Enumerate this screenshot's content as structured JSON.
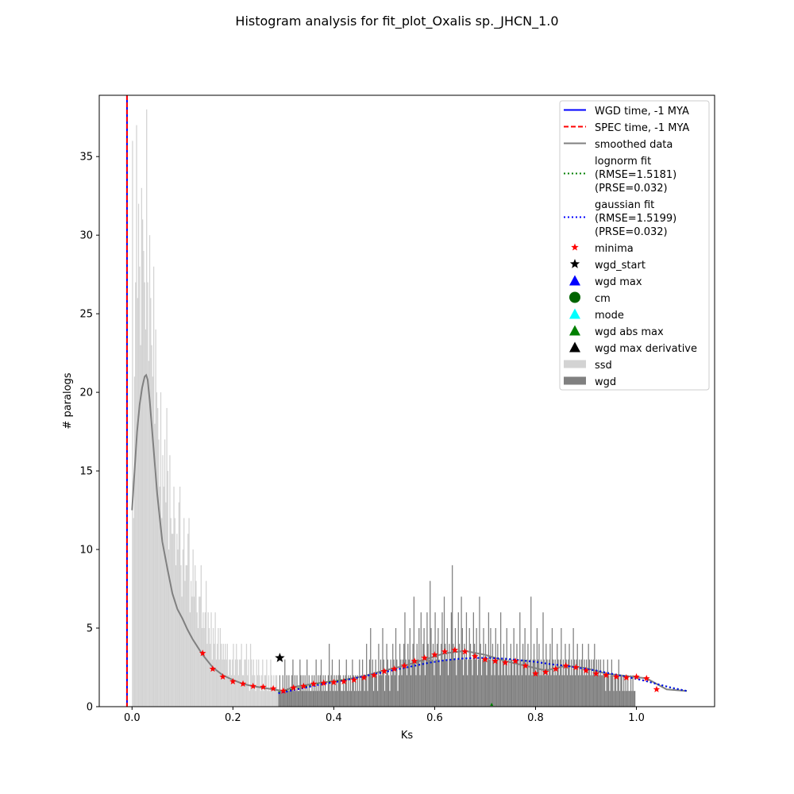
{
  "chart_data": {
    "type": "histogram",
    "title": "Histogram analysis for fit_plot_Oxalis sp._JHCN_1.0",
    "xlabel": "Ks",
    "ylabel": "# paralogs",
    "xlim": [
      -0.065,
      1.155
    ],
    "ylim": [
      0,
      38.9
    ],
    "xticks": [
      0.0,
      0.2,
      0.4,
      0.6,
      0.8,
      1.0
    ],
    "xtick_labels": [
      "0.0",
      "0.2",
      "0.4",
      "0.6",
      "0.8",
      "1.0"
    ],
    "yticks": [
      0,
      5,
      10,
      15,
      20,
      25,
      30,
      35
    ],
    "ytick_labels": [
      "0",
      "5",
      "10",
      "15",
      "20",
      "25",
      "30",
      "35"
    ],
    "grid": false,
    "legend_position": "top-right",
    "vertical_lines": [
      {
        "name": "WGD time, -1 MYA",
        "x": -0.01,
        "color": "#0000ff",
        "style": "solid"
      },
      {
        "name": "SPEC time, -1 MYA",
        "x": -0.01,
        "color": "#ff0000",
        "style": "dashed"
      }
    ],
    "ssd_bins": {
      "name": "ssd",
      "color": "#d3d3d3",
      "x_start": 0.0,
      "bin_width": 0.002,
      "counts": [
        36,
        12,
        21,
        27,
        37,
        26,
        32,
        28,
        23,
        33,
        31,
        29,
        27,
        24,
        38,
        27,
        22,
        30,
        26,
        23,
        21,
        28,
        18,
        24,
        20,
        19,
        17,
        14,
        20,
        12,
        16,
        14,
        17,
        13,
        19,
        15,
        10,
        16,
        12,
        11,
        11,
        14,
        12,
        9,
        11,
        10,
        13,
        14,
        9,
        7,
        10,
        12,
        8,
        9,
        9,
        11,
        12,
        6,
        8,
        7,
        10,
        7,
        9,
        8,
        6,
        5,
        7,
        7,
        9,
        5,
        6,
        5,
        6,
        8,
        4,
        6,
        5,
        4,
        6,
        3,
        5,
        4,
        6,
        3,
        4,
        5,
        3,
        5,
        4,
        3,
        4,
        3,
        4,
        3,
        4,
        2,
        3,
        3,
        2,
        3,
        4,
        2,
        3,
        4,
        3,
        2,
        3,
        3,
        4,
        2,
        2,
        3,
        3,
        4,
        2,
        3,
        1,
        4,
        3,
        2,
        3,
        2,
        1,
        3,
        2,
        3,
        2,
        1,
        2,
        3,
        1,
        2,
        2,
        3,
        1,
        2,
        1,
        3,
        2,
        1,
        2,
        1,
        2,
        2,
        1,
        1
      ]
    },
    "wgd_bins": {
      "name": "wgd",
      "color": "#808080",
      "x_start": 0.29,
      "bin_width": 0.002,
      "counts": [
        1,
        2,
        1,
        1,
        2,
        1,
        3,
        1,
        2,
        1,
        2,
        1,
        1,
        2,
        3,
        1,
        2,
        1,
        2,
        1,
        1,
        3,
        2,
        1,
        2,
        1,
        2,
        1,
        3,
        1,
        2,
        1,
        1,
        2,
        1,
        2,
        1,
        3,
        1,
        2,
        1,
        2,
        3,
        1,
        2,
        1,
        2,
        1,
        1,
        2,
        4,
        1,
        2,
        3,
        1,
        2,
        1,
        2,
        1,
        2,
        3,
        2,
        1,
        1,
        2,
        1,
        2,
        3,
        1,
        2,
        1,
        2,
        1,
        3,
        2,
        1,
        2,
        1,
        2,
        1,
        3,
        1,
        2,
        3,
        2,
        1,
        2,
        4,
        1,
        2,
        3,
        5,
        2,
        3,
        1,
        2,
        3,
        2,
        1,
        4,
        2,
        3,
        2,
        5,
        3,
        1,
        2,
        4,
        3,
        2,
        1,
        3,
        2,
        4,
        3,
        2,
        5,
        3,
        1,
        2,
        4,
        3,
        2,
        3,
        4,
        6,
        3,
        2,
        4,
        3,
        5,
        2,
        3,
        4,
        7,
        3,
        2,
        4,
        3,
        5,
        2,
        6,
        3,
        4,
        5,
        2,
        3,
        6,
        4,
        3,
        8,
        5,
        3,
        4,
        2,
        6,
        3,
        4,
        5,
        3,
        2,
        4,
        6,
        3,
        7,
        4,
        3,
        5,
        2,
        4,
        3,
        6,
        9,
        4,
        3,
        5,
        2,
        3,
        6,
        4,
        3,
        7,
        5,
        2,
        4,
        3,
        6,
        2,
        3,
        5,
        4,
        3,
        2,
        6,
        4,
        3,
        5,
        2,
        3,
        7,
        4,
        2,
        3,
        5,
        3,
        4,
        2,
        3,
        6,
        3,
        5,
        2,
        4,
        3,
        2,
        5,
        3,
        4,
        2,
        3,
        6,
        2,
        3,
        4,
        2,
        3,
        5,
        2,
        3,
        2,
        4,
        3,
        2,
        5,
        3,
        2,
        4,
        3,
        2,
        6,
        3,
        2,
        4,
        3,
        5,
        2,
        3,
        4,
        2,
        3,
        7,
        2,
        3,
        4,
        3,
        2,
        5,
        3,
        4,
        2,
        3,
        2,
        6,
        3,
        2,
        4,
        3,
        2,
        3,
        4,
        2,
        5,
        3,
        2,
        3,
        2,
        4,
        3,
        2,
        3,
        5,
        2,
        3,
        2,
        4,
        3,
        2,
        3,
        4,
        2,
        3,
        2,
        5,
        3,
        2,
        3,
        4,
        2,
        3,
        2,
        3,
        4,
        2,
        3,
        2,
        3,
        2,
        4,
        3,
        2,
        3,
        2,
        3,
        4,
        2,
        3,
        2,
        3,
        2,
        3,
        2,
        2,
        3,
        2,
        1,
        2,
        3,
        2,
        1,
        2,
        3,
        2,
        1,
        2,
        2,
        1,
        2,
        3,
        1,
        2,
        2,
        1,
        2,
        1,
        2,
        1,
        2,
        1,
        1,
        2,
        1,
        2,
        1,
        1
      ]
    },
    "smoothed_data": {
      "name": "smoothed data",
      "color": "#808080",
      "x": [
        0.0,
        0.005,
        0.01,
        0.015,
        0.02,
        0.025,
        0.028,
        0.031,
        0.035,
        0.04,
        0.045,
        0.05,
        0.055,
        0.06,
        0.07,
        0.08,
        0.09,
        0.1,
        0.11,
        0.12,
        0.13,
        0.14,
        0.15,
        0.16,
        0.18,
        0.2,
        0.22,
        0.24,
        0.26,
        0.28,
        0.3,
        0.32,
        0.35,
        0.38,
        0.42,
        0.46,
        0.5,
        0.54,
        0.58,
        0.62,
        0.66,
        0.7,
        0.74,
        0.78,
        0.82,
        0.86,
        0.9,
        0.94,
        0.98,
        1.02,
        1.06,
        1.1
      ],
      "y": [
        12.5,
        15.0,
        17.5,
        19.2,
        20.3,
        21.0,
        21.1,
        20.8,
        19.5,
        17.5,
        15.5,
        13.5,
        12.0,
        10.5,
        8.8,
        7.2,
        6.2,
        5.6,
        4.9,
        4.3,
        3.8,
        3.3,
        2.9,
        2.5,
        2.0,
        1.7,
        1.45,
        1.3,
        1.2,
        1.1,
        1.0,
        1.25,
        1.4,
        1.55,
        1.7,
        1.95,
        2.3,
        2.6,
        3.0,
        3.4,
        3.55,
        3.3,
        2.9,
        2.6,
        2.3,
        2.6,
        2.45,
        2.1,
        1.95,
        1.8,
        1.1,
        1.0
      ]
    },
    "minima": {
      "name": "minima",
      "color": "#ff0000",
      "x": [
        0.14,
        0.16,
        0.18,
        0.2,
        0.22,
        0.24,
        0.26,
        0.28,
        0.3,
        0.32,
        0.34,
        0.36,
        0.38,
        0.4,
        0.42,
        0.44,
        0.46,
        0.48,
        0.5,
        0.52,
        0.54,
        0.56,
        0.58,
        0.6,
        0.62,
        0.64,
        0.66,
        0.68,
        0.7,
        0.72,
        0.74,
        0.76,
        0.78,
        0.8,
        0.82,
        0.84,
        0.86,
        0.88,
        0.9,
        0.92,
        0.94,
        0.96,
        0.98,
        1.0,
        1.02,
        1.04
      ],
      "y": [
        3.4,
        2.4,
        1.9,
        1.6,
        1.45,
        1.3,
        1.25,
        1.15,
        1.0,
        1.2,
        1.3,
        1.45,
        1.5,
        1.55,
        1.6,
        1.7,
        1.85,
        2.0,
        2.25,
        2.4,
        2.6,
        2.9,
        3.1,
        3.3,
        3.5,
        3.6,
        3.5,
        3.2,
        3.0,
        2.9,
        2.8,
        2.9,
        2.6,
        2.1,
        2.2,
        2.4,
        2.6,
        2.5,
        2.3,
        2.1,
        2.0,
        1.9,
        1.85,
        1.9,
        1.8,
        1.1
      ]
    },
    "wgd_start": {
      "name": "wgd_start",
      "color": "#000000",
      "x": 0.293,
      "y": 3.1
    },
    "wgd_abs_max": {
      "name": "wgd abs max",
      "color": "#008000",
      "x": 0.713,
      "y": 0.1
    },
    "lognorm_fit": {
      "name": "lognorm fit",
      "rmse_label": "(RMSE=1.5181)",
      "prse_label": "(PRSE=0.032)",
      "color": "#008000",
      "x": [
        0.29,
        0.32,
        0.35,
        0.38,
        0.41,
        0.44,
        0.47,
        0.5,
        0.53,
        0.56,
        0.59,
        0.62,
        0.65,
        0.68,
        0.71,
        0.74,
        0.77,
        0.8,
        0.83,
        0.86,
        0.89,
        0.92,
        0.95,
        0.98,
        1.01,
        1.04,
        1.07,
        1.1
      ],
      "y": [
        0.9,
        1.1,
        1.3,
        1.5,
        1.65,
        1.8,
        2.0,
        2.2,
        2.4,
        2.6,
        2.8,
        2.95,
        3.05,
        3.1,
        3.1,
        3.05,
        2.95,
        2.85,
        2.7,
        2.6,
        2.45,
        2.3,
        2.1,
        1.9,
        1.7,
        1.45,
        1.2,
        1.0
      ]
    },
    "gaussian_fit": {
      "name": "gaussian fit",
      "rmse_label": "(RMSE=1.5199)",
      "prse_label": "(PRSE=0.032)",
      "color": "#0000ff",
      "x": [
        0.29,
        0.32,
        0.35,
        0.38,
        0.41,
        0.44,
        0.47,
        0.5,
        0.53,
        0.56,
        0.59,
        0.62,
        0.65,
        0.68,
        0.71,
        0.74,
        0.77,
        0.8,
        0.83,
        0.86,
        0.89,
        0.92,
        0.95,
        0.98,
        1.01,
        1.04,
        1.07,
        1.1
      ],
      "y": [
        0.85,
        1.05,
        1.25,
        1.45,
        1.6,
        1.8,
        2.0,
        2.2,
        2.4,
        2.6,
        2.8,
        2.95,
        3.05,
        3.1,
        3.1,
        3.05,
        2.95,
        2.85,
        2.7,
        2.6,
        2.45,
        2.3,
        2.1,
        1.9,
        1.7,
        1.45,
        1.2,
        1.0
      ]
    },
    "legend": [
      {
        "label": "WGD time, -1 MYA",
        "kind": "line",
        "color": "#0000ff",
        "dash": ""
      },
      {
        "label": "SPEC time, -1 MYA",
        "kind": "line",
        "color": "#ff0000",
        "dash": "6,3"
      },
      {
        "label": "smoothed data",
        "kind": "line",
        "color": "#808080",
        "dash": ""
      },
      {
        "label": "lognorm fit",
        "sub": [
          "(RMSE=1.5181)",
          "(PRSE=0.032)"
        ],
        "kind": "line",
        "color": "#008000",
        "dash": "2,3"
      },
      {
        "label": "gaussian fit",
        "sub": [
          "(RMSE=1.5199)",
          "(PRSE=0.032)"
        ],
        "kind": "line",
        "color": "#0000ff",
        "dash": "2,3"
      },
      {
        "label": "minima",
        "kind": "star-small",
        "color": "#ff0000"
      },
      {
        "label": "wgd_start",
        "kind": "star",
        "color": "#000000"
      },
      {
        "label": "wgd max",
        "kind": "triangle",
        "color": "#0000ff"
      },
      {
        "label": "cm",
        "kind": "circle",
        "color": "#006400"
      },
      {
        "label": "mode",
        "kind": "triangle",
        "color": "#00ffff"
      },
      {
        "label": "wgd abs max",
        "kind": "triangle",
        "color": "#008000"
      },
      {
        "label": "wgd max derivative",
        "kind": "triangle",
        "color": "#000000"
      },
      {
        "label": "ssd",
        "kind": "patch",
        "color": "#d3d3d3"
      },
      {
        "label": "wgd",
        "kind": "patch",
        "color": "#808080"
      }
    ]
  }
}
